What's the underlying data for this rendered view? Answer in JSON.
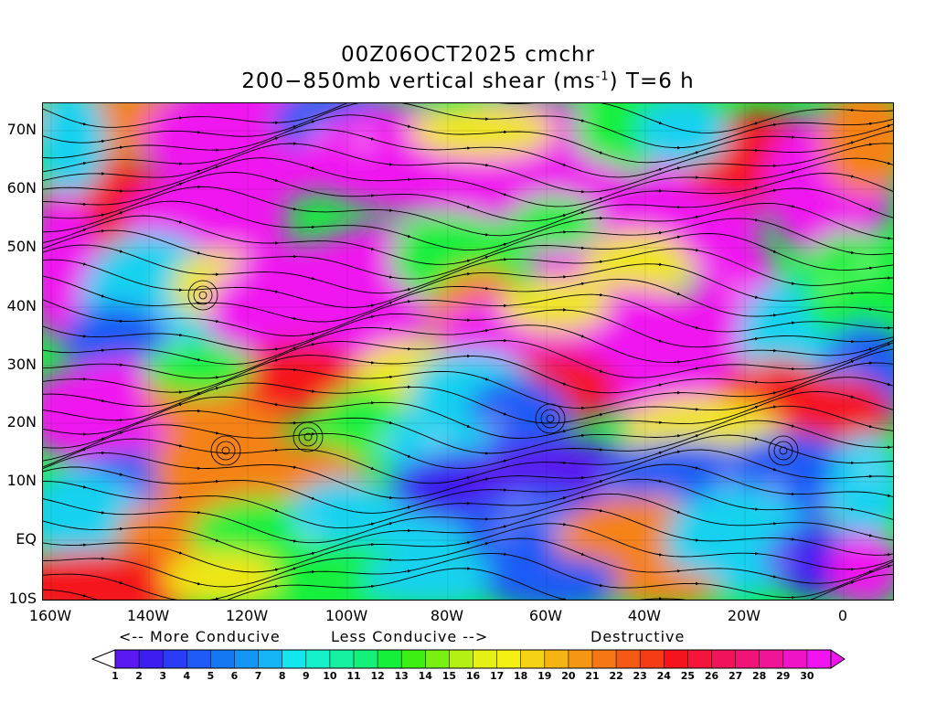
{
  "title": {
    "line1": "00Z06OCT2025 cmchr",
    "line2_prefix": "200−850mb vertical shear (ms",
    "line2_sup": "-1",
    "line2_suffix": ") T=6 h"
  },
  "map": {
    "lat_labels": [
      "70N",
      "60N",
      "50N",
      "40N",
      "30N",
      "20N",
      "10N",
      "EQ",
      "10S"
    ],
    "lon_labels": [
      "160W",
      "140W",
      "120W",
      "100W",
      "80W",
      "60W",
      "40W",
      "20W",
      "0"
    ],
    "lon_range": [
      "160W",
      "10E"
    ],
    "lat_range": [
      "10S",
      "75N"
    ],
    "field": "200-850mb vertical shear magnitude with shear streamlines"
  },
  "legend": {
    "more_conducive": "<-- More Conducive",
    "less_conducive": "Less Conducive -->",
    "destructive": "Destructive",
    "levels": [
      "1",
      "2",
      "3",
      "4",
      "5",
      "6",
      "7",
      "8",
      "9",
      "10",
      "11",
      "12",
      "13",
      "14",
      "15",
      "16",
      "17",
      "18",
      "19",
      "20",
      "21",
      "22",
      "23",
      "24",
      "25",
      "26",
      "27",
      "28",
      "29",
      "30"
    ],
    "colors": [
      "#ffffff",
      "#5a19f0",
      "#3c1ef0",
      "#2a3cf5",
      "#1e5af5",
      "#1478f5",
      "#1496f5",
      "#14b4f5",
      "#14e6f0",
      "#14f0c8",
      "#14f0a0",
      "#14f078",
      "#14f03c",
      "#3cf014",
      "#78f014",
      "#b4f014",
      "#e6f014",
      "#f5f014",
      "#f5d214",
      "#f5b414",
      "#f59614",
      "#f57814",
      "#f55a14",
      "#f53c14",
      "#f5141e",
      "#f5143c",
      "#f0145a",
      "#f01478",
      "#f01496",
      "#f014c8",
      "#f014f0"
    ],
    "under_color": "#ffffff",
    "over_color": "#f014f0"
  }
}
